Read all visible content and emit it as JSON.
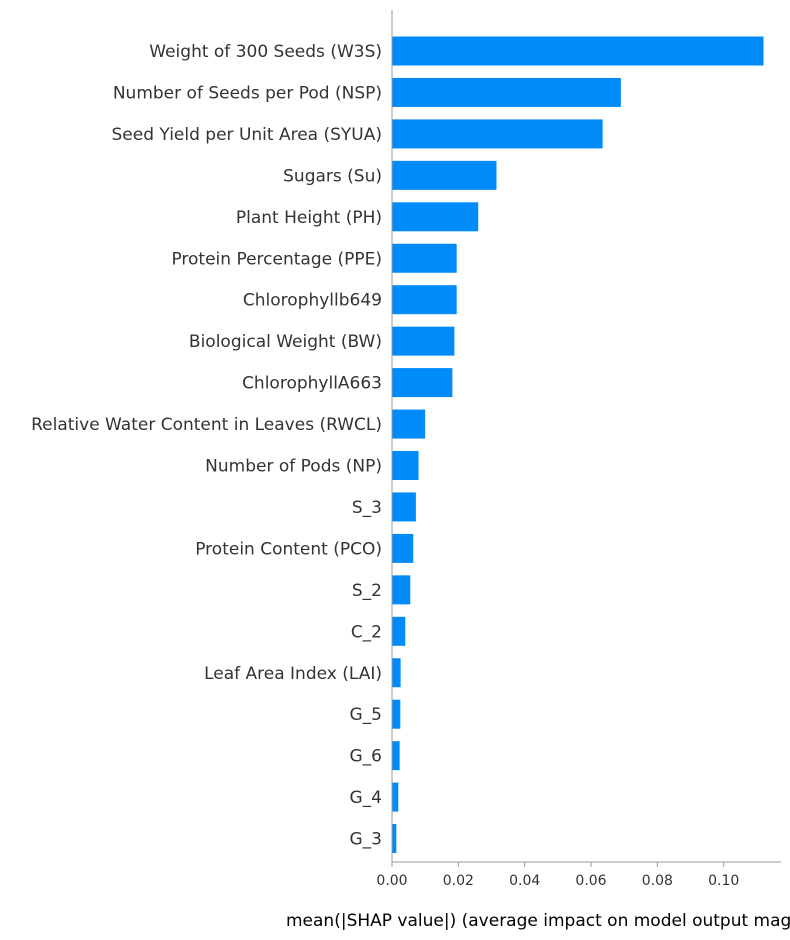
{
  "chart_data": {
    "type": "bar",
    "orientation": "horizontal",
    "categories": [
      "Weight of 300 Seeds (W3S)",
      "Number of Seeds per Pod (NSP)",
      "Seed Yield per Unit Area (SYUA)",
      "Sugars (Su)",
      "Plant Height (PH)",
      "Protein Percentage (PPE)",
      "Chlorophyllb649",
      "Biological Weight (BW)",
      "ChlorophyllA663",
      "Relative Water Content in Leaves (RWCL)",
      "Number of Pods (NP)",
      "S_3",
      "Protein Content (PCO)",
      "S_2",
      "C_2",
      "Leaf Area Index (LAI)",
      "G_5",
      "G_6",
      "G_4",
      "G_3"
    ],
    "values": [
      0.112,
      0.069,
      0.0635,
      0.0315,
      0.026,
      0.0195,
      0.0195,
      0.0188,
      0.0182,
      0.01,
      0.008,
      0.0072,
      0.0064,
      0.0055,
      0.004,
      0.0026,
      0.0025,
      0.0023,
      0.0019,
      0.0013
    ],
    "xlabel": "mean(|SHAP value|) (average impact on model output magnitude)",
    "ylabel": "",
    "title": "",
    "xlim": [
      0,
      0.118
    ],
    "xticks": [
      "0.00",
      "0.02",
      "0.04",
      "0.06",
      "0.08",
      "0.10"
    ],
    "grid": false,
    "legend": "none",
    "bar_color": "#008bfb"
  }
}
